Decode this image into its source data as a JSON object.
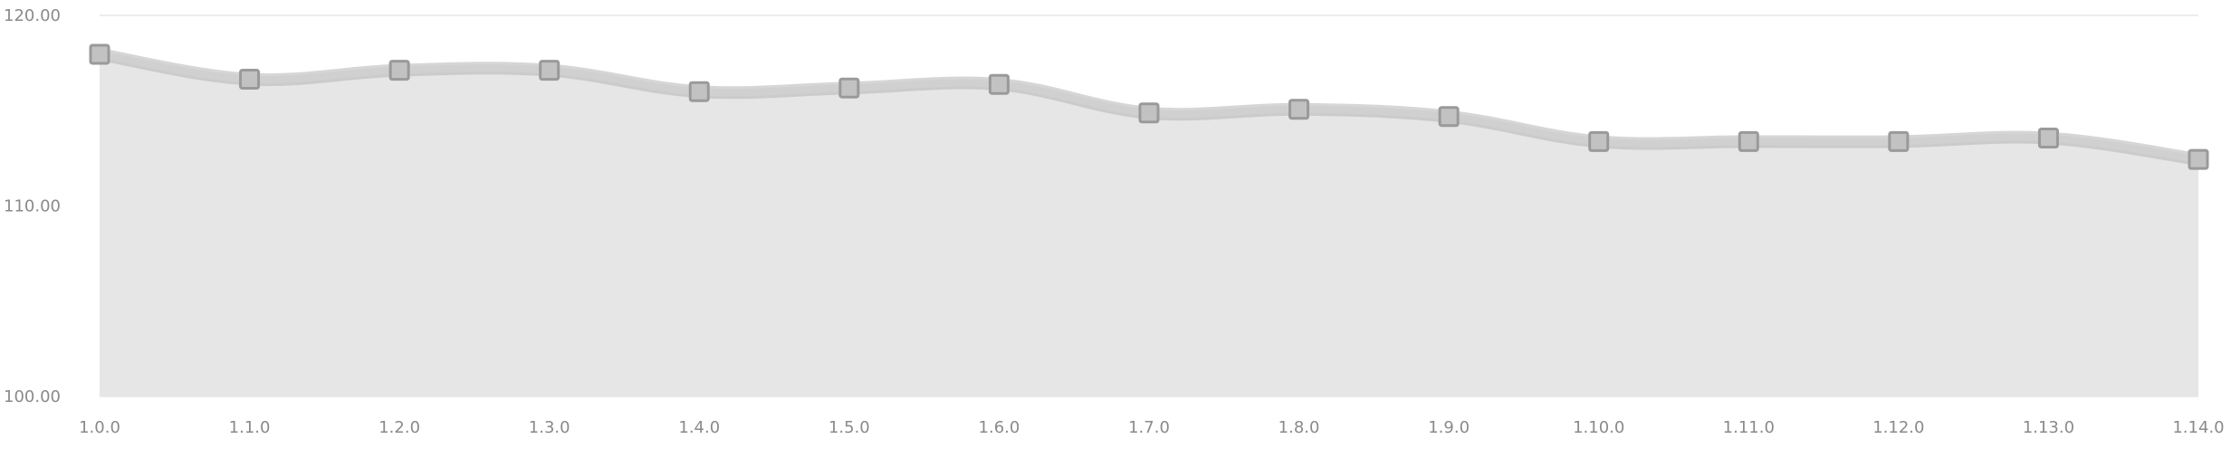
{
  "chart_data": {
    "type": "area",
    "title": "",
    "xlabel": "",
    "ylabel": "",
    "x_tick_labels": [
      "1.0.0",
      "1.1.0",
      "1.2.0",
      "1.3.0",
      "1.4.0",
      "1.5.0",
      "1.6.0",
      "1.7.0",
      "1.8.0",
      "1.9.0",
      "1.10.0",
      "1.11.0",
      "1.12.0",
      "1.13.0",
      "1.14.0"
    ],
    "y_tick_labels": [
      "120.00",
      "110.00",
      "100.00"
    ],
    "y_tick_values": [
      120,
      110,
      100
    ],
    "ylim": [
      100,
      120
    ],
    "grid": true,
    "legend": "none",
    "series": [
      {
        "values": [
          117.96,
          116.65,
          117.12,
          117.12,
          116.0,
          116.19,
          116.38,
          114.88,
          115.07,
          114.69,
          113.38,
          113.38,
          113.38,
          113.56,
          112.44
        ]
      }
    ],
    "colors": {
      "line": "#d0d0d0",
      "line_outline": "#b4b4b4",
      "area": "#e6e6e6",
      "marker": "#c2c2c2",
      "marker_border": "#9a9a9a"
    }
  }
}
